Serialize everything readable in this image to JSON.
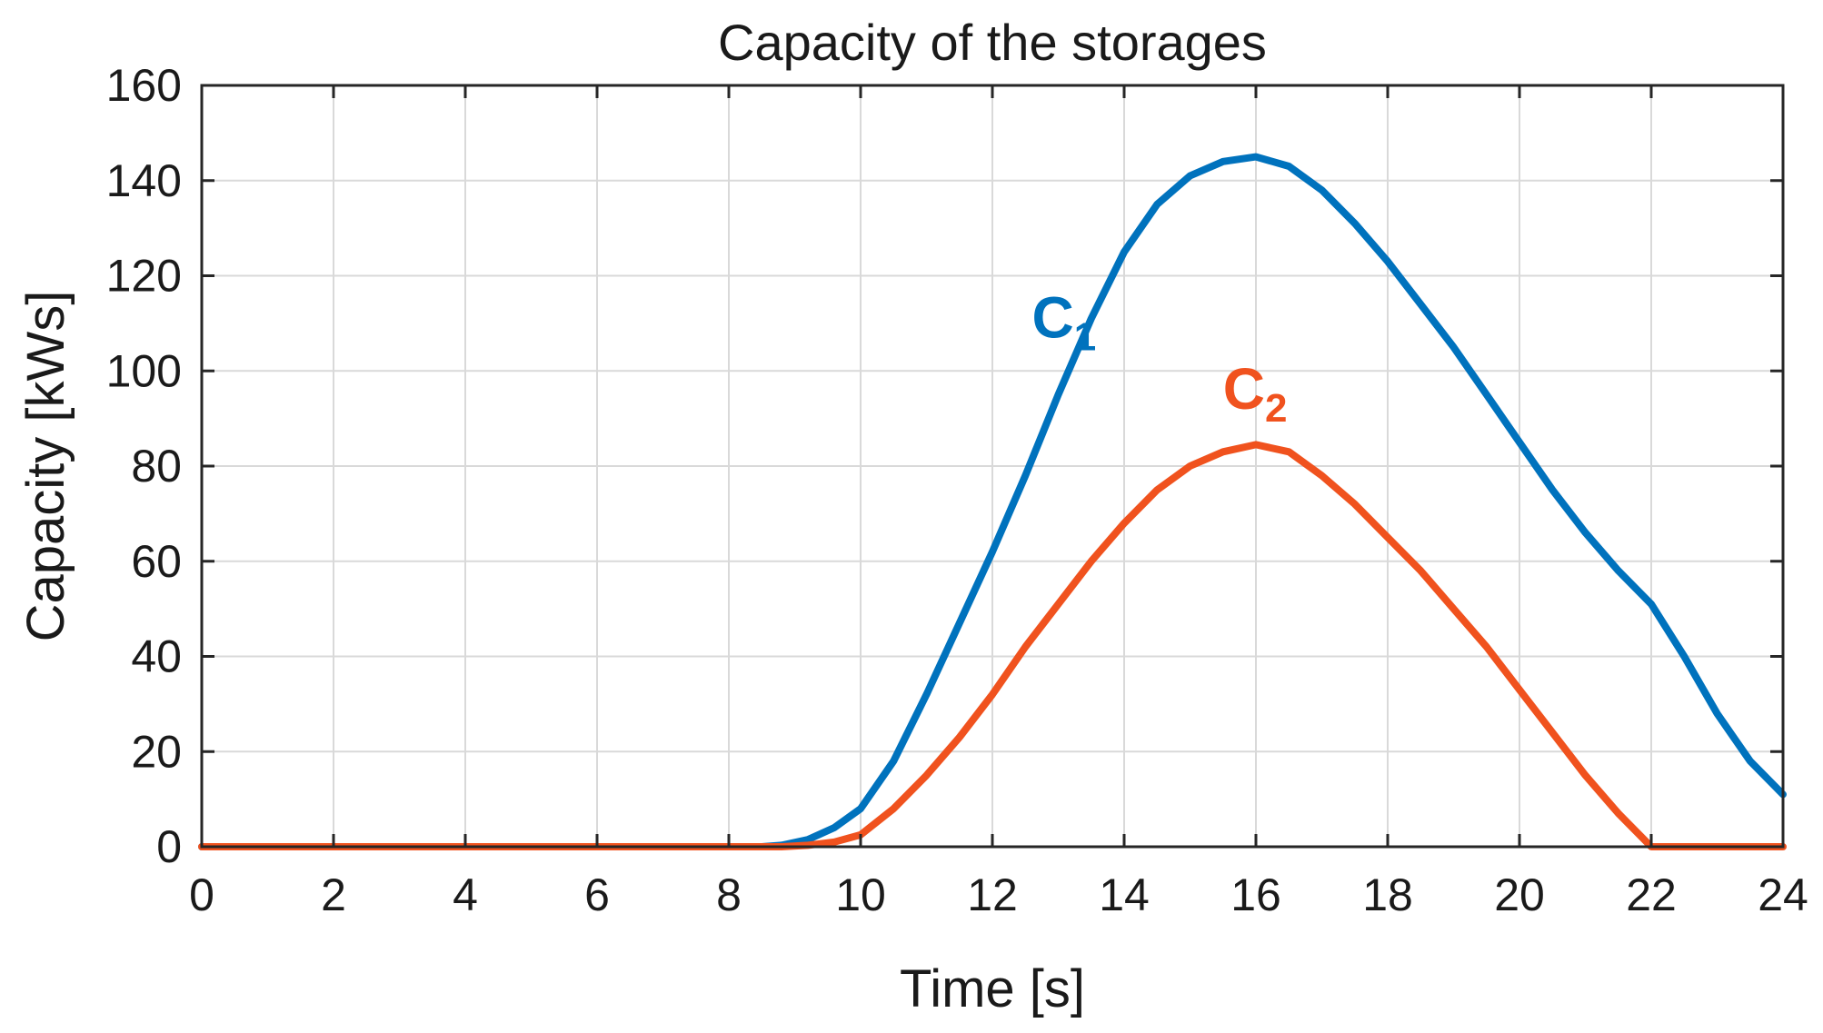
{
  "chart_data": {
    "type": "line",
    "title": "Capacity of the storages",
    "xlabel": "Time [s]",
    "ylabel": "Capacity [kWs]",
    "xlim": [
      0,
      24
    ],
    "ylim": [
      0,
      160
    ],
    "xticks": [
      "0",
      "2",
      "4",
      "6",
      "8",
      "10",
      "12",
      "14",
      "16",
      "18",
      "20",
      "22",
      "24"
    ],
    "yticks": [
      "0",
      "20",
      "40",
      "60",
      "80",
      "100",
      "120",
      "140",
      "160"
    ],
    "grid": true,
    "series": [
      {
        "name": "C1",
        "label_main": "C",
        "label_sub": "1",
        "color": "#0072bd",
        "x": [
          0,
          8.5,
          8.8,
          9.2,
          9.6,
          10.0,
          10.5,
          11.0,
          11.5,
          12.0,
          12.5,
          13.0,
          13.5,
          14.0,
          14.5,
          15.0,
          15.5,
          16.0,
          16.5,
          17.0,
          17.5,
          18.0,
          18.5,
          19.0,
          19.5,
          20.0,
          20.5,
          21.0,
          21.5,
          22.0,
          22.5,
          23.0,
          23.5,
          24.0
        ],
        "y": [
          0,
          0,
          0.3,
          1.5,
          4,
          8,
          18,
          32,
          47,
          62,
          78,
          95,
          111,
          125,
          135,
          141,
          144,
          145,
          143,
          138,
          131,
          123,
          114,
          105,
          95,
          85,
          75,
          66,
          58,
          51,
          40,
          28,
          18,
          11
        ]
      },
      {
        "name": "C2",
        "label_main": "C",
        "label_sub": "2",
        "color": "#f0521e",
        "x": [
          0,
          8.8,
          9.2,
          9.6,
          10.0,
          10.5,
          11.0,
          11.5,
          12.0,
          12.5,
          13.0,
          13.5,
          14.0,
          14.5,
          15.0,
          15.5,
          16.0,
          16.5,
          17.0,
          17.5,
          18.0,
          18.5,
          19.0,
          19.5,
          20.0,
          20.5,
          21.0,
          21.5,
          22.0,
          24.0
        ],
        "y": [
          0,
          0,
          0.3,
          1,
          2.5,
          8,
          15,
          23,
          32,
          42,
          51,
          60,
          68,
          75,
          80,
          83,
          84.5,
          83,
          78,
          72,
          65,
          58,
          50,
          42,
          33,
          24,
          15,
          7,
          0,
          0
        ]
      }
    ]
  }
}
